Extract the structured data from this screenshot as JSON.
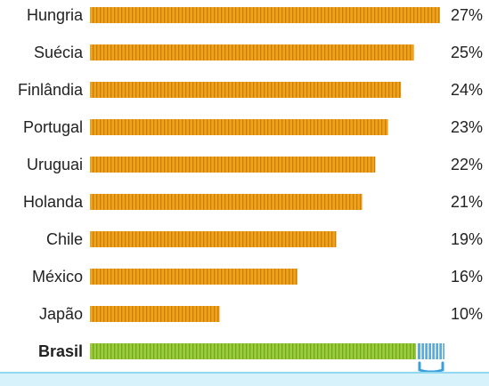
{
  "chart_data": {
    "type": "bar",
    "orientation": "horizontal",
    "categories": [
      "Hungria",
      "Suécia",
      "Finlândia",
      "Portugal",
      "Uruguai",
      "Holanda",
      "Chile",
      "México",
      "Japão",
      "Brasil"
    ],
    "values": [
      27,
      25,
      24,
      23,
      22,
      21,
      19,
      16,
      10,
      null
    ],
    "value_labels": [
      "27%",
      "25%",
      "24%",
      "23%",
      "22%",
      "21%",
      "19%",
      "16%",
      "10%",
      ""
    ],
    "emphasized_category": "Brasil",
    "colors": {
      "bar": "#f0a21c",
      "bar_tick": "#c97f08",
      "highlight_bar": "#9ccc3c",
      "highlight_tick": "#6fa91f",
      "highlight_end": "#5aa9df",
      "bracket": "#3aa0dc",
      "band": "#d7f2fb"
    }
  }
}
